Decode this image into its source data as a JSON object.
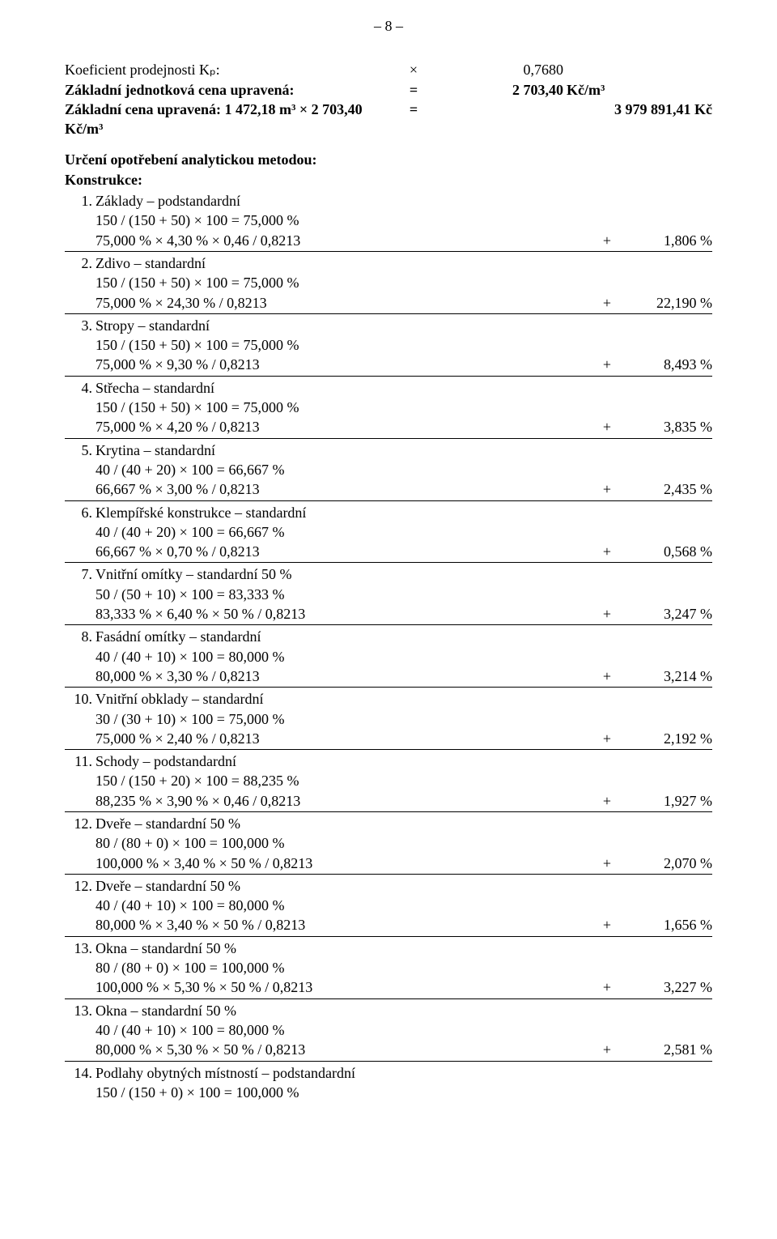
{
  "pageNumber": "– 8 –",
  "header": {
    "l1": {
      "label": "Koeficient prodejnosti Kₚ:",
      "op": "×",
      "val": "0,7680",
      "unit": ""
    },
    "l2": {
      "label": "Základní jednotková cena upravená:",
      "op": "=",
      "val": "2 703,40",
      "unit": "Kč/m³"
    },
    "l3": {
      "label": "Základní cena upravená: 1 472,18 m³ × 2 703,40 Kč/m³",
      "op": "=",
      "val": "3 979 891,41 Kč"
    }
  },
  "sectionTitle": "Určení opotřebení analytickou metodou:",
  "constructionsLabel": "Konstrukce:",
  "items": [
    {
      "num": "1.",
      "title": "Základy – podstandardní",
      "calc": "150 / (150 + 50) × 100 = 75,000 %",
      "res_left": "75,000 % × 4,30 % × 0,46 / 0,8213",
      "res_op": "+",
      "res_val": "1,806 %"
    },
    {
      "num": "2.",
      "title": "Zdivo – standardní",
      "calc": "150 / (150 + 50) × 100 = 75,000 %",
      "res_left": "75,000 % × 24,30 % / 0,8213",
      "res_op": "+",
      "res_val": "22,190 %"
    },
    {
      "num": "3.",
      "title": "Stropy – standardní",
      "calc": "150 / (150 + 50) × 100 = 75,000 %",
      "res_left": "75,000 % × 9,30 % / 0,8213",
      "res_op": "+",
      "res_val": "8,493 %"
    },
    {
      "num": "4.",
      "title": "Střecha – standardní",
      "calc": "150 / (150 + 50) × 100 = 75,000 %",
      "res_left": "75,000 % × 4,20 % / 0,8213",
      "res_op": "+",
      "res_val": "3,835 %"
    },
    {
      "num": "5.",
      "title": "Krytina – standardní",
      "calc": "40 / (40 + 20) × 100 = 66,667 %",
      "res_left": "66,667 % × 3,00 % / 0,8213",
      "res_op": "+",
      "res_val": "2,435 %"
    },
    {
      "num": "6.",
      "title": "Klempířské konstrukce – standardní",
      "calc": "40 / (40 + 20) × 100 = 66,667 %",
      "res_left": "66,667 % × 0,70 % / 0,8213",
      "res_op": "+",
      "res_val": "0,568 %"
    },
    {
      "num": "7.",
      "title": "Vnitřní omítky – standardní 50 %",
      "calc": "50 / (50 + 10) × 100 = 83,333 %",
      "res_left": "83,333 % × 6,40 % × 50 % / 0,8213",
      "res_op": "+",
      "res_val": "3,247 %"
    },
    {
      "num": "8.",
      "title": "Fasádní omítky – standardní",
      "calc": "40 / (40 + 10) × 100 = 80,000 %",
      "res_left": "80,000 % × 3,30 % / 0,8213",
      "res_op": "+",
      "res_val": "3,214 %"
    },
    {
      "num": "10.",
      "title": "Vnitřní obklady – standardní",
      "calc": "30 / (30 + 10) × 100 = 75,000 %",
      "res_left": "75,000 % × 2,40 % / 0,8213",
      "res_op": "+",
      "res_val": "2,192 %"
    },
    {
      "num": "11.",
      "title": "Schody – podstandardní",
      "calc": "150 / (150 + 20) × 100 = 88,235 %",
      "res_left": "88,235 % × 3,90 % × 0,46 / 0,8213",
      "res_op": "+",
      "res_val": "1,927 %"
    },
    {
      "num": "12.",
      "title": "Dveře – standardní 50 %",
      "calc": "80 / (80 + 0) × 100 = 100,000 %",
      "res_left": "100,000 % × 3,40 % × 50 % / 0,8213",
      "res_op": "+",
      "res_val": "2,070 %"
    },
    {
      "num": "12.",
      "title": "Dveře – standardní 50 %",
      "calc": "40 / (40 + 10) × 100 = 80,000 %",
      "res_left": "80,000 % × 3,40 % × 50 % / 0,8213",
      "res_op": "+",
      "res_val": "1,656 %"
    },
    {
      "num": "13.",
      "title": "Okna – standardní 50 %",
      "calc": "80 / (80 + 0) × 100 = 100,000 %",
      "res_left": "100,000 % × 5,30 % × 50 % / 0,8213",
      "res_op": "+",
      "res_val": "3,227 %"
    },
    {
      "num": "13.",
      "title": "Okna – standardní 50 %",
      "calc": "40 / (40 + 10) × 100 = 80,000 %",
      "res_left": "80,000 % × 5,30 % × 50 % / 0,8213",
      "res_op": "+",
      "res_val": "2,581 %"
    },
    {
      "num": "14.",
      "title": "Podlahy obytných místností – podstandardní",
      "calc": "150 / (150 + 0) × 100 = 100,000 %",
      "no_result": true
    }
  ]
}
